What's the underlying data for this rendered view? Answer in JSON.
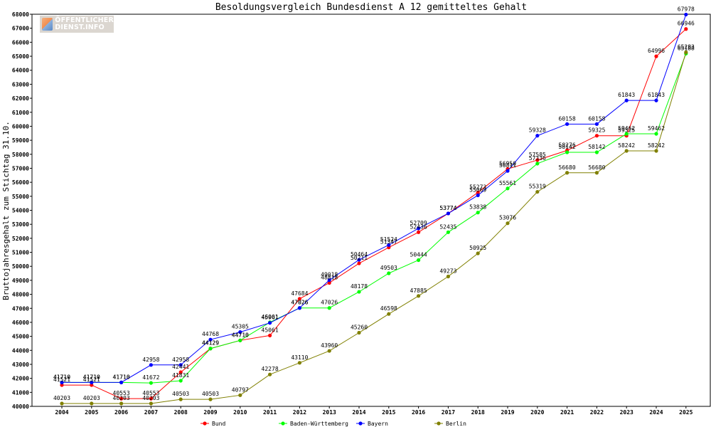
{
  "logo": {
    "line1": "ÖFFENTLICHER",
    "line2": "DIENST.INFO"
  },
  "chart_data": {
    "type": "line",
    "title": "Besoldungsvergleich Bundesdienst A 12 gemitteltes Gehalt",
    "xlabel": "",
    "ylabel": "Bruttojahresgehalt zum Stichtag 31.10.",
    "x": [
      "2004",
      "2005",
      "2006",
      "2007",
      "2008",
      "2009",
      "2010",
      "2011",
      "2012",
      "2013",
      "2014",
      "2015",
      "2016",
      "2017",
      "2018",
      "2019",
      "2020",
      "2021",
      "2022",
      "2023",
      "2024",
      "2025"
    ],
    "ylim": [
      40000,
      68000
    ],
    "yticks": [
      40000,
      41000,
      42000,
      43000,
      44000,
      45000,
      46000,
      47000,
      48000,
      49000,
      50000,
      51000,
      52000,
      53000,
      54000,
      55000,
      56000,
      57000,
      58000,
      59000,
      60000,
      61000,
      62000,
      63000,
      64000,
      65000,
      66000,
      67000,
      68000
    ],
    "grid": false,
    "legend_position": "bottom",
    "series": [
      {
        "name": "Bund",
        "color": "#ff0000",
        "values": [
          41521,
          41521,
          40553,
          40553,
          42441,
          44129,
          44710,
          45061,
          47684,
          48818,
          50211,
          51347,
          52436,
          53774,
          55273,
          56950,
          57585,
          58276,
          59325,
          59325,
          64996,
          66946
        ]
      },
      {
        "name": "Baden-Württemberg",
        "color": "#00ff00",
        "values": [
          41710,
          41710,
          41710,
          41672,
          41831,
          44129,
          44710,
          46001,
          47026,
          47026,
          48178,
          49503,
          50444,
          52435,
          53838,
          55561,
          57336,
          58142,
          58142,
          59462,
          59462,
          65188
        ]
      },
      {
        "name": "Bayern",
        "color": "#0000ff",
        "values": [
          41710,
          41710,
          41710,
          42958,
          42958,
          44768,
          45305,
          45961,
          47026,
          49018,
          50464,
          51524,
          52709,
          53774,
          55069,
          56811,
          59328,
          60158,
          60158,
          61843,
          61843,
          67978
        ]
      },
      {
        "name": "Berlin",
        "color": "#808000",
        "values": [
          40203,
          40203,
          40203,
          40203,
          40503,
          40503,
          40797,
          42278,
          43110,
          43960,
          45260,
          46598,
          47885,
          49273,
          50925,
          53076,
          55319,
          56680,
          56680,
          58242,
          58242,
          65283
        ]
      }
    ]
  }
}
